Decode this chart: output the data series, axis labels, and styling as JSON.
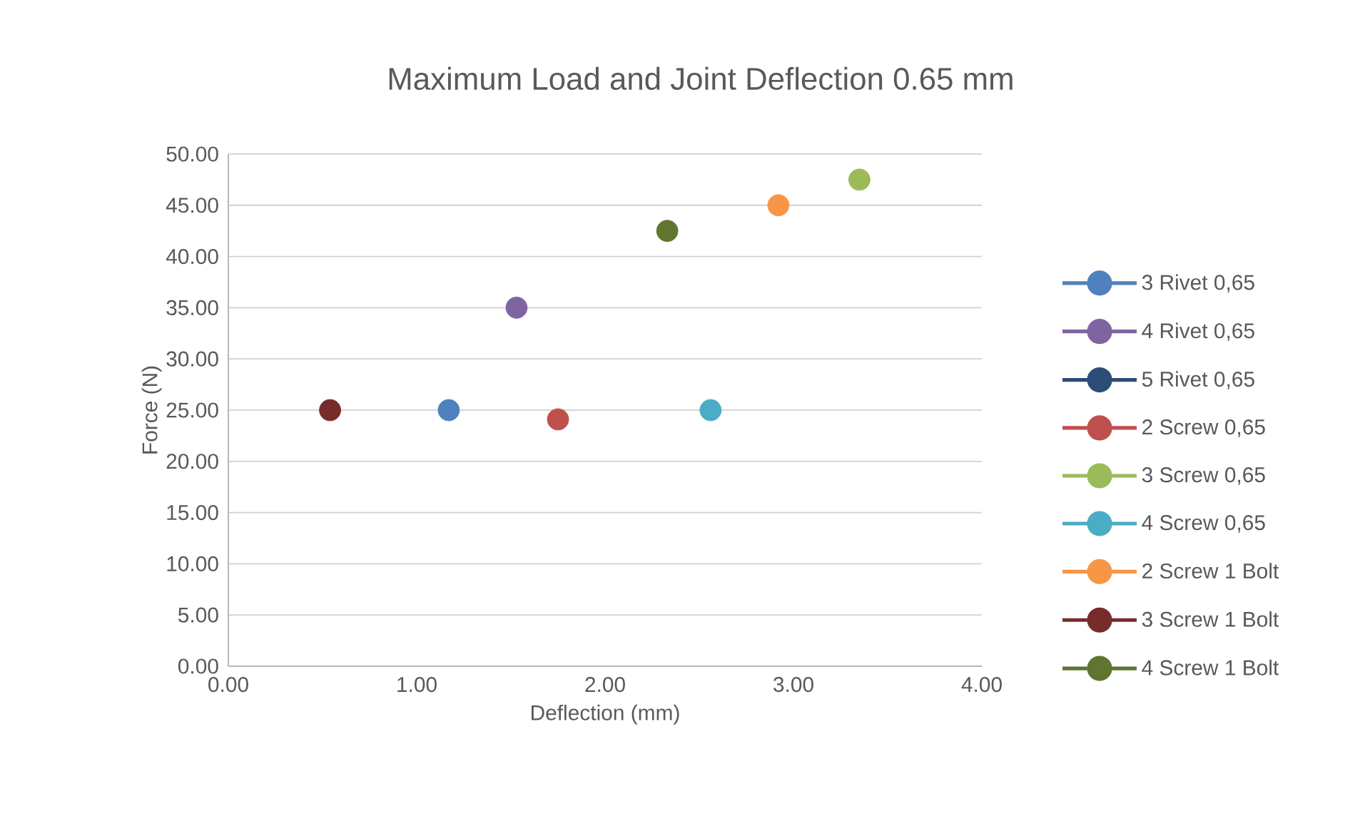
{
  "chart_data": {
    "type": "scatter",
    "title": "Maximum Load and Joint Deflection 0.65 mm",
    "xlabel": "Deflection (mm)",
    "ylabel": "Force (N)",
    "xlim": [
      0,
      4
    ],
    "ylim": [
      0,
      50
    ],
    "xticks": [
      {
        "value": 0,
        "label": "0.00"
      },
      {
        "value": 1,
        "label": "1.00"
      },
      {
        "value": 2,
        "label": "2.00"
      },
      {
        "value": 3,
        "label": "3.00"
      },
      {
        "value": 4,
        "label": "4.00"
      }
    ],
    "yticks": [
      {
        "value": 0,
        "label": "0.00"
      },
      {
        "value": 5,
        "label": "5.00"
      },
      {
        "value": 10,
        "label": "10.00"
      },
      {
        "value": 15,
        "label": "15.00"
      },
      {
        "value": 20,
        "label": "20.00"
      },
      {
        "value": 25,
        "label": "25.00"
      },
      {
        "value": 30,
        "label": "30.00"
      },
      {
        "value": 35,
        "label": "35.00"
      },
      {
        "value": 40,
        "label": "40.00"
      },
      {
        "value": 45,
        "label": "45.00"
      },
      {
        "value": 50,
        "label": "50.00"
      }
    ],
    "grid": "y",
    "legend": "right",
    "marker": "circle",
    "line_style": "solid",
    "series": [
      {
        "name": "3 Rivet 0,65",
        "color": "#4f81bd",
        "x": [
          1.17
        ],
        "values": [
          25
        ]
      },
      {
        "name": "4 Rivet 0,65",
        "color": "#8064a2",
        "x": [
          1.53
        ],
        "values": [
          35
        ]
      },
      {
        "name": "5 Rivet 0,65",
        "color": "#2c4d75",
        "x": [
          null
        ],
        "values": [
          null
        ]
      },
      {
        "name": "2 Screw 0,65",
        "color": "#c0504d",
        "x": [
          1.75
        ],
        "values": [
          24.1
        ]
      },
      {
        "name": "3 Screw 0,65",
        "color": "#9bbb59",
        "x": [
          3.35
        ],
        "values": [
          47.5
        ]
      },
      {
        "name": "4 Screw 0,65",
        "color": "#4bacc6",
        "x": [
          2.56
        ],
        "values": [
          25
        ]
      },
      {
        "name": "2 Screw 1 Bolt",
        "color": "#f79646",
        "x": [
          2.92
        ],
        "values": [
          45
        ]
      },
      {
        "name": "3 Screw 1 Bolt",
        "color": "#772c2a",
        "x": [
          0.54
        ],
        "values": [
          25
        ]
      },
      {
        "name": "4 Screw 1 Bolt",
        "color": "#5f7530",
        "x": [
          2.33
        ],
        "values": [
          42.5
        ]
      }
    ]
  }
}
